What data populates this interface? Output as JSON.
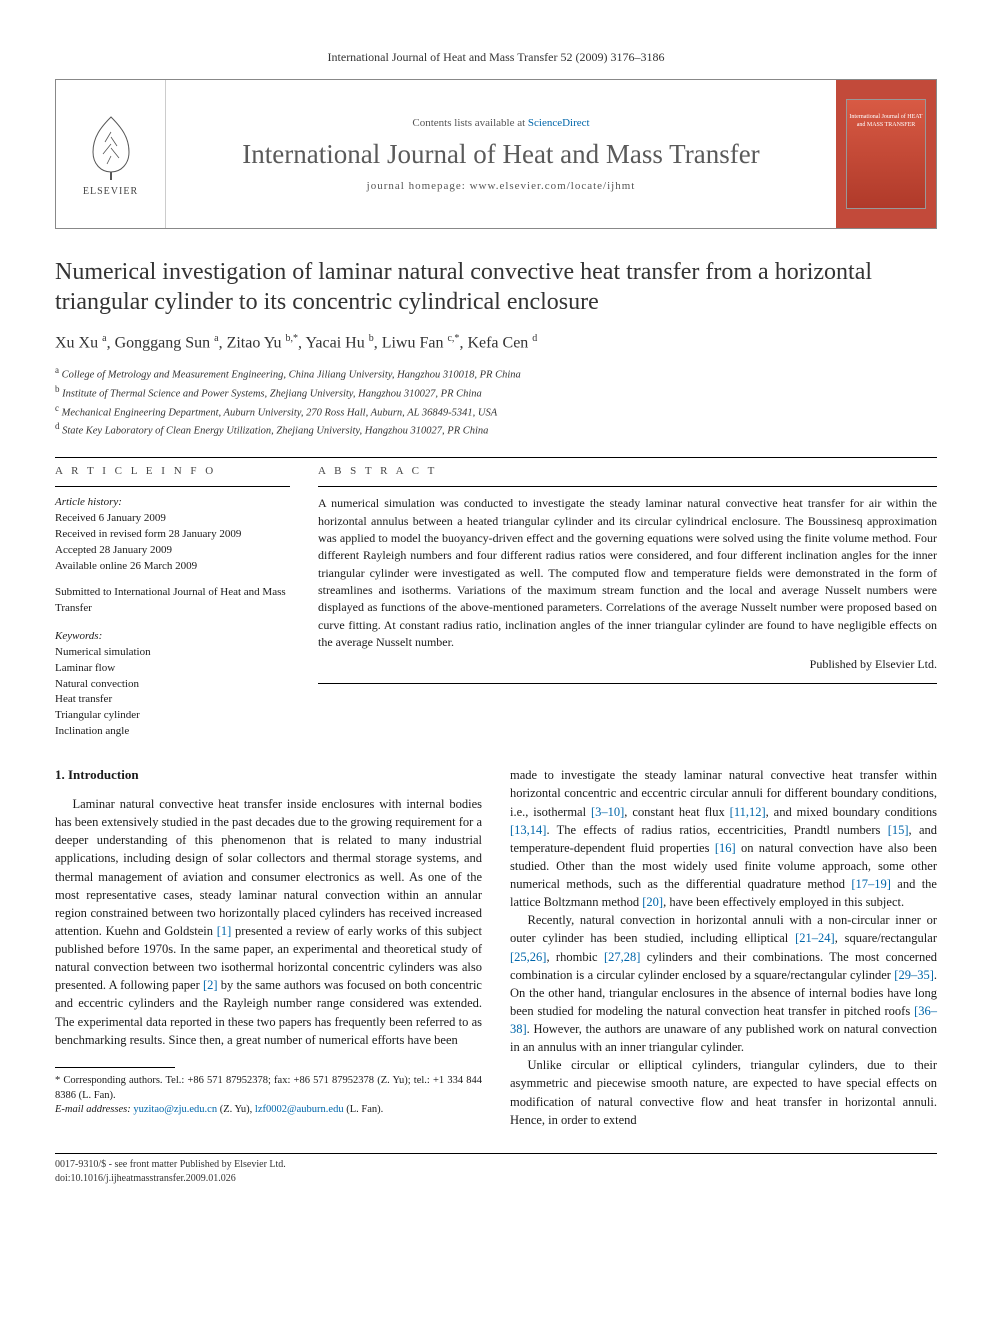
{
  "running_head": "International Journal of Heat and Mass Transfer 52 (2009) 3176–3186",
  "masthead": {
    "publisher": "ELSEVIER",
    "contents_prefix": "Contents lists available at ",
    "contents_link": "ScienceDirect",
    "journal": "International Journal of Heat and Mass Transfer",
    "homepage_label": "journal homepage: ",
    "homepage_url": "www.elsevier.com/locate/ijhmt",
    "cover_text": "International Journal of\nHEAT and MASS\nTRANSFER"
  },
  "title": "Numerical investigation of laminar natural convective heat transfer from a horizontal triangular cylinder to its concentric cylindrical enclosure",
  "authors_html": "Xu Xu <sup>a</sup>, Gonggang Sun <sup>a</sup>, Zitao Yu <sup>b,*</sup>, Yacai Hu <sup>b</sup>, Liwu Fan <sup>c,*</sup>, Kefa Cen <sup>d</sup>",
  "affiliations": [
    {
      "sup": "a",
      "text": "College of Metrology and Measurement Engineering, China Jiliang University, Hangzhou 310018, PR China"
    },
    {
      "sup": "b",
      "text": "Institute of Thermal Science and Power Systems, Zhejiang University, Hangzhou 310027, PR China"
    },
    {
      "sup": "c",
      "text": "Mechanical Engineering Department, Auburn University, 270 Ross Hall, Auburn, AL 36849-5341, USA"
    },
    {
      "sup": "d",
      "text": "State Key Laboratory of Clean Energy Utilization, Zhejiang University, Hangzhou 310027, PR China"
    }
  ],
  "article_info": {
    "heading": "A R T I C L E   I N F O",
    "history_label": "Article history:",
    "history": [
      "Received 6 January 2009",
      "Received in revised form 28 January 2009",
      "Accepted 28 January 2009",
      "Available online 26 March 2009"
    ],
    "submitted": "Submitted to International Journal of Heat and Mass Transfer",
    "keywords_label": "Keywords:",
    "keywords": [
      "Numerical simulation",
      "Laminar flow",
      "Natural convection",
      "Heat transfer",
      "Triangular cylinder",
      "Inclination angle"
    ]
  },
  "abstract": {
    "heading": "A B S T R A C T",
    "text": "A numerical simulation was conducted to investigate the steady laminar natural convective heat transfer for air within the horizontal annulus between a heated triangular cylinder and its circular cylindrical enclosure. The Boussinesq approximation was applied to model the buoyancy-driven effect and the governing equations were solved using the finite volume method. Four different Rayleigh numbers and four different radius ratios were considered, and four different inclination angles for the inner triangular cylinder were investigated as well. The computed flow and temperature fields were demonstrated in the form of streamlines and isotherms. Variations of the maximum stream function and the local and average Nusselt numbers were displayed as functions of the above-mentioned parameters. Correlations of the average Nusselt number were proposed based on curve fitting. At constant radius ratio, inclination angles of the inner triangular cylinder are found to have negligible effects on the average Nusselt number.",
    "publisher": "Published by Elsevier Ltd."
  },
  "section1": {
    "heading": "1. Introduction",
    "p1_a": "Laminar natural convective heat transfer inside enclosures with internal bodies has been extensively studied in the past decades due to the growing requirement for a deeper understanding of this phenomenon that is related to many industrial applications, including design of solar collectors and thermal storage systems, and thermal management of aviation and consumer electronics as well. As one of the most representative cases, steady laminar natural convection within an annular region constrained between two horizontally placed cylinders has received increased attention. Kuehn and Goldstein ",
    "ref1": "[1]",
    "p1_b": " presented a review of early works of this subject published before 1970s. In the same paper, an experimental and theoretical study of natural convection between two isothermal horizontal concentric cylinders was also presented. A following paper ",
    "ref2": "[2]",
    "p1_c": " by the same authors was focused on both concentric and eccentric cylinders and the Rayleigh number range considered was extended. The experimental data reported in these two papers has frequently been referred to as benchmarking results. Since then, a great number of numerical efforts have been ",
    "p2_a": "made to investigate the steady laminar natural convective heat transfer within horizontal concentric and eccentric circular annuli for different boundary conditions, i.e., isothermal ",
    "ref3_10": "[3–10]",
    "p2_b": ", constant heat flux ",
    "ref11_12": "[11,12]",
    "p2_c": ", and mixed boundary conditions ",
    "ref13_14": "[13,14]",
    "p2_d": ". The effects of radius ratios, eccentricities, Prandtl numbers ",
    "ref15": "[15]",
    "p2_e": ", and temperature-dependent fluid properties ",
    "ref16": "[16]",
    "p2_f": " on natural convection have also been studied. Other than the most widely used finite volume approach, some other numerical methods, such as the differential quadrature method ",
    "ref17_19": "[17–19]",
    "p2_g": " and the lattice Boltzmann method ",
    "ref20": "[20]",
    "p2_h": ", have been effectively employed in this subject.",
    "p3_a": "Recently, natural convection in horizontal annuli with a non-circular inner or outer cylinder has been studied, including elliptical ",
    "ref21_24": "[21–24]",
    "p3_b": ", square/rectangular ",
    "ref25_26": "[25,26]",
    "p3_c": ", rhombic ",
    "ref27_28": "[27,28]",
    "p3_d": " cylinders and their combinations. The most concerned combination is a circular cylinder enclosed by a square/rectangular cylinder ",
    "ref29_35": "[29–35]",
    "p3_e": ". On the other hand, triangular enclosures in the absence of internal bodies have long been studied for modeling the natural convection heat transfer in pitched roofs ",
    "ref36_38": "[36–38]",
    "p3_f": ". However, the authors are unaware of any published work on natural convection in an annulus with an inner triangular cylinder.",
    "p4": "Unlike circular or elliptical cylinders, triangular cylinders, due to their asymmetric and piecewise smooth nature, are expected to have special effects on modification of natural convective flow and heat transfer in horizontal annuli. Hence, in order to extend"
  },
  "footnotes": {
    "corr_label": "* Corresponding authors. Tel.: +86 571 87952378; fax: +86 571 87952378 (Z. Yu); tel.: +1 334 844 8386 (L. Fan).",
    "email_label": "E-mail addresses:",
    "email1": "yuzitao@zju.edu.cn",
    "email1_who": " (Z. Yu), ",
    "email2": "lzf0002@auburn.edu",
    "email2_who": " (L. Fan)."
  },
  "copyright": {
    "line1": "0017-9310/$ - see front matter Published by Elsevier Ltd.",
    "line2": "doi:10.1016/j.ijheatmasstransfer.2009.01.026"
  },
  "colors": {
    "link": "#0066aa",
    "cover_bg": "#c24a3a",
    "text": "#1a1a1a",
    "rule": "#000000"
  }
}
